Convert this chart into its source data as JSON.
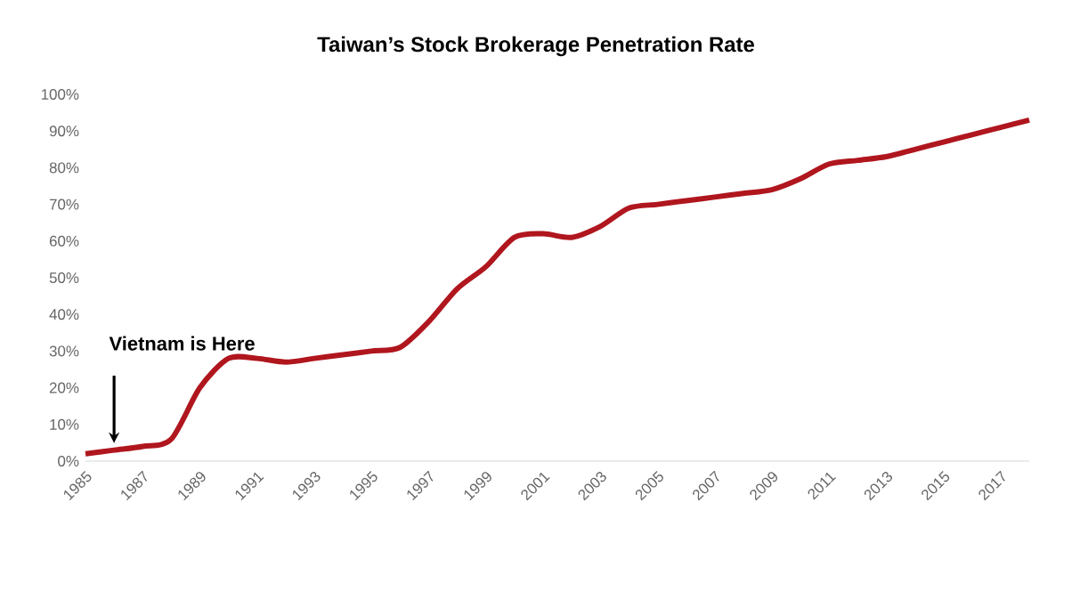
{
  "chart_data": {
    "type": "line",
    "title": "Taiwan’s Stock Brokerage Penetration Rate",
    "x": [
      1985,
      1986,
      1987,
      1988,
      1989,
      1990,
      1991,
      1992,
      1993,
      1994,
      1995,
      1996,
      1997,
      1998,
      1999,
      2000,
      2001,
      2002,
      2003,
      2004,
      2005,
      2006,
      2007,
      2008,
      2009,
      2010,
      2011,
      2012,
      2013,
      2014,
      2015,
      2016,
      2017,
      2018
    ],
    "series": [
      {
        "color": "#b0161e",
        "values": [
          2,
          3,
          4,
          6,
          20,
          28,
          28,
          27,
          28,
          29,
          30,
          31,
          38,
          47,
          53,
          61,
          62,
          61,
          64,
          69,
          70,
          71,
          72,
          73,
          74,
          77,
          81,
          82,
          83,
          85,
          87,
          89,
          91,
          93
        ]
      }
    ],
    "xlim": [
      1985,
      2018
    ],
    "xticks": [
      1985,
      1987,
      1989,
      1991,
      1993,
      1995,
      1997,
      1999,
      2001,
      2003,
      2005,
      2007,
      2009,
      2011,
      2013,
      2015,
      2017
    ],
    "ylim": [
      0,
      100
    ],
    "yticks": [
      {
        "value": 0,
        "label": "0%"
      },
      {
        "value": 10,
        "label": "10%"
      },
      {
        "value": 20,
        "label": "20%"
      },
      {
        "value": 30,
        "label": "30%"
      },
      {
        "value": 40,
        "label": "40%"
      },
      {
        "value": 50,
        "label": "50%"
      },
      {
        "value": 60,
        "label": "60%"
      },
      {
        "value": 70,
        "label": "70%"
      },
      {
        "value": 80,
        "label": "80%"
      },
      {
        "value": 90,
        "label": "90%"
      },
      {
        "value": 100,
        "label": "100%"
      }
    ],
    "annotations": [
      {
        "text": "Vietnam is Here",
        "x": 1986,
        "y": 3
      }
    ],
    "grid": false,
    "marker": "none",
    "line_style": "solid"
  }
}
